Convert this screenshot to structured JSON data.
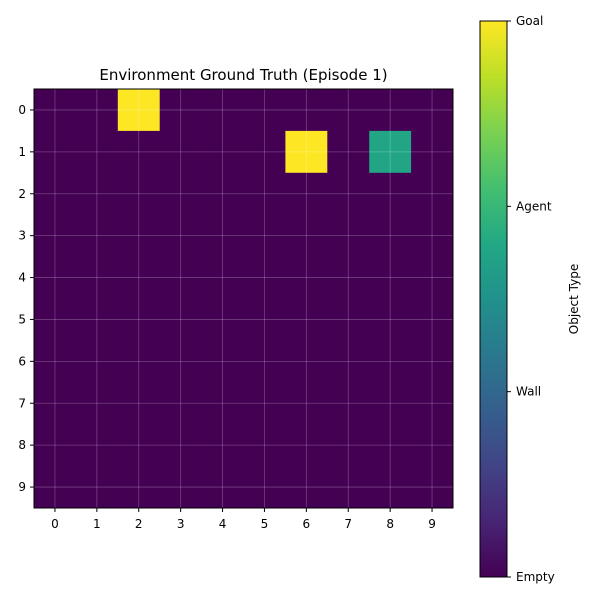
{
  "chart_data": {
    "type": "heatmap",
    "title": "Environment Ground Truth (Episode 1)",
    "x_ticks": [
      "0",
      "1",
      "2",
      "3",
      "4",
      "5",
      "6",
      "7",
      "8",
      "9"
    ],
    "y_ticks": [
      "0",
      "1",
      "2",
      "3",
      "4",
      "5",
      "6",
      "7",
      "8",
      "9"
    ],
    "grid": true,
    "colormap": "viridis",
    "value_range": [
      0,
      3
    ],
    "colors": {
      "empty": "#440154",
      "agent": "#21a585",
      "goal": "#fde725"
    },
    "cells": [
      {
        "row": 0,
        "col": 2,
        "value": 3,
        "type": "Goal"
      },
      {
        "row": 1,
        "col": 6,
        "value": 3,
        "type": "Goal"
      },
      {
        "row": 1,
        "col": 8,
        "value": 2,
        "type": "Agent"
      }
    ],
    "colorbar": {
      "label": "Object Type",
      "ticks": [
        {
          "label": "Empty",
          "value": 0
        },
        {
          "label": "Wall",
          "value": 1
        },
        {
          "label": "Agent",
          "value": 2
        },
        {
          "label": "Goal",
          "value": 3
        }
      ]
    }
  }
}
